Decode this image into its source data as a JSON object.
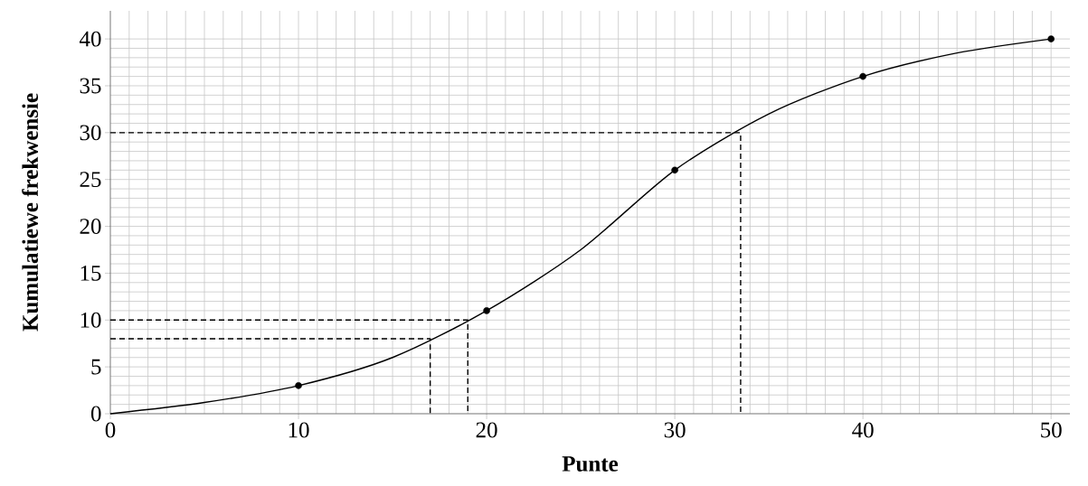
{
  "chart_data": {
    "type": "line",
    "xlabel": "Punte",
    "ylabel": "Kumulatiewe frekwensie",
    "xlim": [
      0,
      51
    ],
    "ylim": [
      0,
      43
    ],
    "xticks": [
      0,
      10,
      20,
      30,
      40,
      50
    ],
    "yticks": [
      0,
      5,
      10,
      15,
      20,
      25,
      30,
      35,
      40
    ],
    "grid": true,
    "series": [
      {
        "color": "#000000",
        "marker": "none",
        "line_style": "solid",
        "x": [
          0,
          5,
          10,
          15,
          20,
          25,
          30,
          35,
          40,
          45,
          50
        ],
        "values": [
          0,
          1.2,
          3,
          6,
          11,
          17.5,
          26,
          32,
          36,
          38.5,
          40
        ]
      },
      {
        "type": "scatter",
        "color": "#000000",
        "marker": "circle",
        "x": [
          10,
          20,
          30,
          40,
          50
        ],
        "values": [
          3,
          11,
          26,
          36,
          40
        ]
      },
      {
        "color": "#000000",
        "marker": "none",
        "line_style": "dashed",
        "x": [
          0,
          19,
          19
        ],
        "values": [
          10,
          10,
          0
        ]
      },
      {
        "color": "#000000",
        "marker": "none",
        "line_style": "dashed",
        "x": [
          0,
          17,
          17
        ],
        "values": [
          8,
          8,
          0
        ]
      },
      {
        "color": "#000000",
        "marker": "none",
        "line_style": "dashed",
        "x": [
          0,
          33.5,
          33.5
        ],
        "values": [
          30,
          30,
          0
        ]
      }
    ]
  }
}
